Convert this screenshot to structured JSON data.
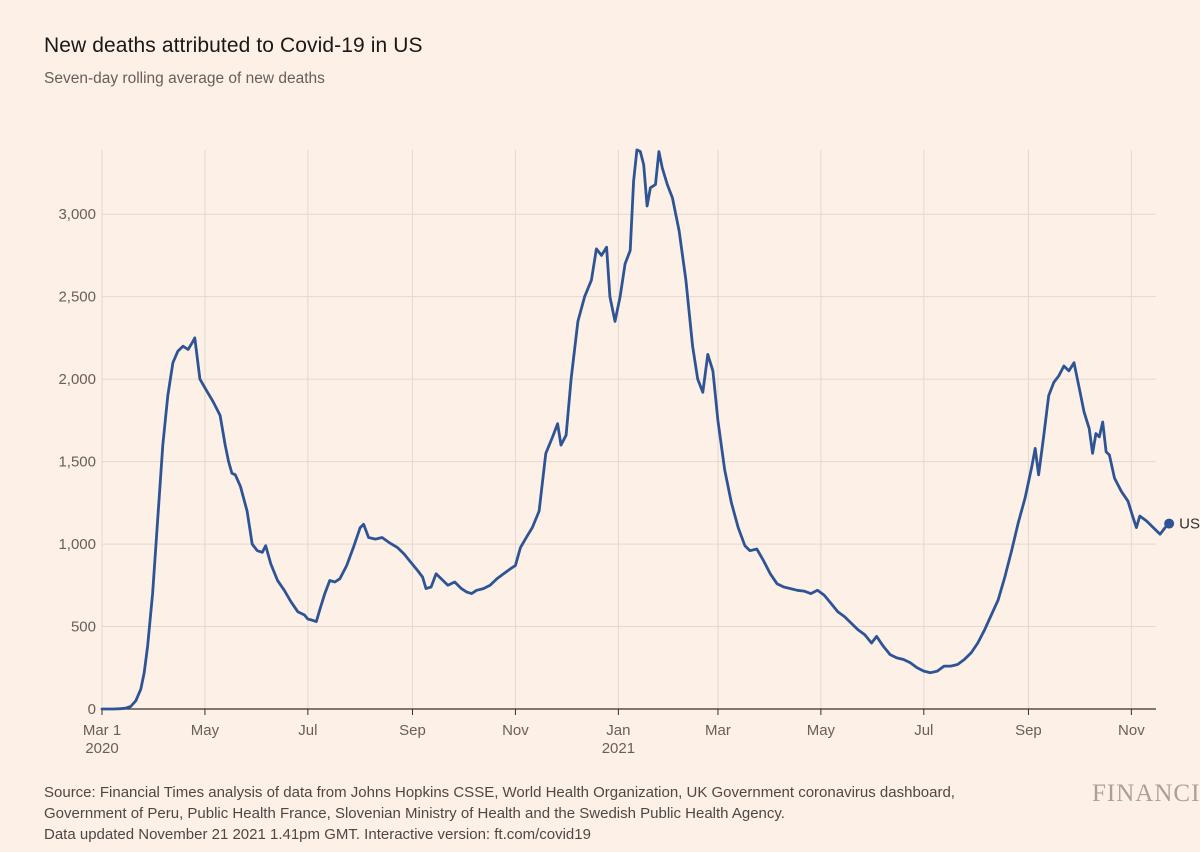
{
  "title": "New deaths attributed to Covid-19 in US",
  "subtitle": "Seven-day rolling average of new deaths",
  "footer": {
    "source_line1": "Source: Financial Times analysis of data from Johns Hopkins CSSE, World Health Organization, UK Government coronavirus dashboard,",
    "source_line2": "Government of Peru, Public Health France, Slovenian Ministry of Health and the Swedish Public Health Agency.",
    "updated": "Data updated November 21 2021 1.41pm GMT. Interactive version: ft.com/covid19"
  },
  "brand": "FINANCIAL",
  "colors": {
    "line": "#2e5496",
    "grid": "#e3d9d1",
    "axis": "#33302e",
    "background": "#fdf0e6"
  },
  "chart_data": {
    "type": "line",
    "title": "New deaths attributed to Covid-19 in US",
    "subtitle": "Seven-day rolling average of new deaths",
    "xlabel": "",
    "ylabel": "",
    "xlim": [
      "2020-03-01",
      "2021-11-21"
    ],
    "ylim": [
      0,
      3450
    ],
    "grid": true,
    "y_ticks": [
      0,
      500,
      1000,
      1500,
      2000,
      2500,
      3000
    ],
    "y_tick_labels": [
      "0",
      "500",
      "1,000",
      "1,500",
      "2,000",
      "2,500",
      "3,000"
    ],
    "x_ticks": [
      {
        "date": "2020-03-01",
        "label": "Mar 1",
        "sublabel": "2020"
      },
      {
        "date": "2020-05-01",
        "label": "May",
        "sublabel": ""
      },
      {
        "date": "2020-07-01",
        "label": "Jul",
        "sublabel": ""
      },
      {
        "date": "2020-09-01",
        "label": "Sep",
        "sublabel": ""
      },
      {
        "date": "2020-11-01",
        "label": "Nov",
        "sublabel": ""
      },
      {
        "date": "2021-01-01",
        "label": "Jan",
        "sublabel": "2021"
      },
      {
        "date": "2021-03-01",
        "label": "Mar",
        "sublabel": ""
      },
      {
        "date": "2021-05-01",
        "label": "May",
        "sublabel": ""
      },
      {
        "date": "2021-07-01",
        "label": "Jul",
        "sublabel": ""
      },
      {
        "date": "2021-09-01",
        "label": "Sep",
        "sublabel": ""
      },
      {
        "date": "2021-11-01",
        "label": "Nov",
        "sublabel": ""
      }
    ],
    "series": [
      {
        "name": "US",
        "end_label": "US",
        "points": [
          [
            "2020-03-01",
            0
          ],
          [
            "2020-03-08",
            0
          ],
          [
            "2020-03-12",
            2
          ],
          [
            "2020-03-15",
            5
          ],
          [
            "2020-03-18",
            15
          ],
          [
            "2020-03-21",
            50
          ],
          [
            "2020-03-24",
            120
          ],
          [
            "2020-03-26",
            220
          ],
          [
            "2020-03-28",
            380
          ],
          [
            "2020-03-31",
            700
          ],
          [
            "2020-04-03",
            1150
          ],
          [
            "2020-04-06",
            1600
          ],
          [
            "2020-04-09",
            1900
          ],
          [
            "2020-04-12",
            2100
          ],
          [
            "2020-04-15",
            2170
          ],
          [
            "2020-04-18",
            2200
          ],
          [
            "2020-04-21",
            2180
          ],
          [
            "2020-04-24",
            2230
          ],
          [
            "2020-04-25",
            2250
          ],
          [
            "2020-04-28",
            2000
          ],
          [
            "2020-05-02",
            1930
          ],
          [
            "2020-05-06",
            1860
          ],
          [
            "2020-05-10",
            1780
          ],
          [
            "2020-05-13",
            1600
          ],
          [
            "2020-05-15",
            1500
          ],
          [
            "2020-05-17",
            1430
          ],
          [
            "2020-05-19",
            1420
          ],
          [
            "2020-05-22",
            1350
          ],
          [
            "2020-05-26",
            1200
          ],
          [
            "2020-05-29",
            1000
          ],
          [
            "2020-06-01",
            960
          ],
          [
            "2020-06-04",
            950
          ],
          [
            "2020-06-06",
            990
          ],
          [
            "2020-06-09",
            880
          ],
          [
            "2020-06-13",
            780
          ],
          [
            "2020-06-17",
            720
          ],
          [
            "2020-06-21",
            650
          ],
          [
            "2020-06-25",
            590
          ],
          [
            "2020-06-29",
            570
          ],
          [
            "2020-07-01",
            545
          ],
          [
            "2020-07-03",
            540
          ],
          [
            "2020-07-06",
            530
          ],
          [
            "2020-07-08",
            600
          ],
          [
            "2020-07-11",
            700
          ],
          [
            "2020-07-14",
            780
          ],
          [
            "2020-07-17",
            770
          ],
          [
            "2020-07-20",
            790
          ],
          [
            "2020-07-24",
            870
          ],
          [
            "2020-07-28",
            980
          ],
          [
            "2020-08-01",
            1100
          ],
          [
            "2020-08-03",
            1120
          ],
          [
            "2020-08-06",
            1040
          ],
          [
            "2020-08-10",
            1030
          ],
          [
            "2020-08-14",
            1040
          ],
          [
            "2020-08-18",
            1010
          ],
          [
            "2020-08-23",
            980
          ],
          [
            "2020-08-27",
            940
          ],
          [
            "2020-08-31",
            890
          ],
          [
            "2020-09-04",
            840
          ],
          [
            "2020-09-07",
            800
          ],
          [
            "2020-09-09",
            730
          ],
          [
            "2020-09-12",
            740
          ],
          [
            "2020-09-15",
            820
          ],
          [
            "2020-09-18",
            790
          ],
          [
            "2020-09-22",
            750
          ],
          [
            "2020-09-26",
            770
          ],
          [
            "2020-09-30",
            730
          ],
          [
            "2020-10-03",
            710
          ],
          [
            "2020-10-06",
            700
          ],
          [
            "2020-10-09",
            720
          ],
          [
            "2020-10-13",
            730
          ],
          [
            "2020-10-17",
            750
          ],
          [
            "2020-10-21",
            790
          ],
          [
            "2020-10-25",
            820
          ],
          [
            "2020-10-29",
            850
          ],
          [
            "2020-11-01",
            870
          ],
          [
            "2020-11-04",
            980
          ],
          [
            "2020-11-08",
            1050
          ],
          [
            "2020-11-11",
            1100
          ],
          [
            "2020-11-15",
            1200
          ],
          [
            "2020-11-19",
            1550
          ],
          [
            "2020-11-23",
            1650
          ],
          [
            "2020-11-26",
            1730
          ],
          [
            "2020-11-28",
            1600
          ],
          [
            "2020-12-01",
            1660
          ],
          [
            "2020-12-04",
            2000
          ],
          [
            "2020-12-08",
            2350
          ],
          [
            "2020-12-12",
            2500
          ],
          [
            "2020-12-16",
            2600
          ],
          [
            "2020-12-19",
            2790
          ],
          [
            "2020-12-22",
            2750
          ],
          [
            "2020-12-25",
            2800
          ],
          [
            "2020-12-27",
            2500
          ],
          [
            "2020-12-30",
            2350
          ],
          [
            "2021-01-02",
            2500
          ],
          [
            "2021-01-05",
            2700
          ],
          [
            "2021-01-08",
            2780
          ],
          [
            "2021-01-10",
            3200
          ],
          [
            "2021-01-12",
            3390
          ],
          [
            "2021-01-14",
            3380
          ],
          [
            "2021-01-16",
            3300
          ],
          [
            "2021-01-18",
            3050
          ],
          [
            "2021-01-20",
            3160
          ],
          [
            "2021-01-23",
            3180
          ],
          [
            "2021-01-25",
            3380
          ],
          [
            "2021-01-27",
            3280
          ],
          [
            "2021-01-30",
            3180
          ],
          [
            "2021-02-02",
            3100
          ],
          [
            "2021-02-06",
            2900
          ],
          [
            "2021-02-10",
            2600
          ],
          [
            "2021-02-14",
            2200
          ],
          [
            "2021-02-17",
            2000
          ],
          [
            "2021-02-20",
            1920
          ],
          [
            "2021-02-23",
            2150
          ],
          [
            "2021-02-26",
            2050
          ],
          [
            "2021-03-01",
            1750
          ],
          [
            "2021-03-05",
            1450
          ],
          [
            "2021-03-09",
            1250
          ],
          [
            "2021-03-13",
            1100
          ],
          [
            "2021-03-17",
            990
          ],
          [
            "2021-03-20",
            960
          ],
          [
            "2021-03-24",
            970
          ],
          [
            "2021-03-28",
            900
          ],
          [
            "2021-04-01",
            820
          ],
          [
            "2021-04-05",
            760
          ],
          [
            "2021-04-09",
            740
          ],
          [
            "2021-04-13",
            730
          ],
          [
            "2021-04-17",
            720
          ],
          [
            "2021-04-21",
            715
          ],
          [
            "2021-04-25",
            700
          ],
          [
            "2021-04-29",
            720
          ],
          [
            "2021-05-03",
            690
          ],
          [
            "2021-05-07",
            640
          ],
          [
            "2021-05-11",
            590
          ],
          [
            "2021-05-15",
            560
          ],
          [
            "2021-05-19",
            520
          ],
          [
            "2021-05-23",
            480
          ],
          [
            "2021-05-27",
            450
          ],
          [
            "2021-05-31",
            400
          ],
          [
            "2021-06-03",
            440
          ],
          [
            "2021-06-07",
            380
          ],
          [
            "2021-06-11",
            330
          ],
          [
            "2021-06-15",
            310
          ],
          [
            "2021-06-19",
            300
          ],
          [
            "2021-06-23",
            280
          ],
          [
            "2021-06-27",
            250
          ],
          [
            "2021-07-01",
            230
          ],
          [
            "2021-07-05",
            220
          ],
          [
            "2021-07-09",
            230
          ],
          [
            "2021-07-13",
            260
          ],
          [
            "2021-07-17",
            260
          ],
          [
            "2021-07-21",
            270
          ],
          [
            "2021-07-25",
            300
          ],
          [
            "2021-07-29",
            340
          ],
          [
            "2021-08-02",
            400
          ],
          [
            "2021-08-06",
            480
          ],
          [
            "2021-08-10",
            570
          ],
          [
            "2021-08-14",
            660
          ],
          [
            "2021-08-18",
            800
          ],
          [
            "2021-08-22",
            960
          ],
          [
            "2021-08-26",
            1130
          ],
          [
            "2021-08-30",
            1280
          ],
          [
            "2021-09-03",
            1470
          ],
          [
            "2021-09-05",
            1580
          ],
          [
            "2021-09-07",
            1420
          ],
          [
            "2021-09-10",
            1650
          ],
          [
            "2021-09-13",
            1900
          ],
          [
            "2021-09-16",
            1980
          ],
          [
            "2021-09-19",
            2020
          ],
          [
            "2021-09-22",
            2080
          ],
          [
            "2021-09-25",
            2050
          ],
          [
            "2021-09-28",
            2100
          ],
          [
            "2021-10-01",
            1950
          ],
          [
            "2021-10-04",
            1800
          ],
          [
            "2021-10-07",
            1700
          ],
          [
            "2021-10-09",
            1550
          ],
          [
            "2021-10-11",
            1670
          ],
          [
            "2021-10-13",
            1650
          ],
          [
            "2021-10-15",
            1740
          ],
          [
            "2021-10-17",
            1560
          ],
          [
            "2021-10-19",
            1540
          ],
          [
            "2021-10-22",
            1400
          ],
          [
            "2021-10-26",
            1320
          ],
          [
            "2021-10-30",
            1260
          ],
          [
            "2021-11-02",
            1160
          ],
          [
            "2021-11-04",
            1100
          ],
          [
            "2021-11-06",
            1170
          ],
          [
            "2021-11-10",
            1140
          ],
          [
            "2021-11-14",
            1100
          ],
          [
            "2021-11-18",
            1060
          ],
          [
            "2021-11-21",
            1100
          ]
        ]
      }
    ]
  }
}
